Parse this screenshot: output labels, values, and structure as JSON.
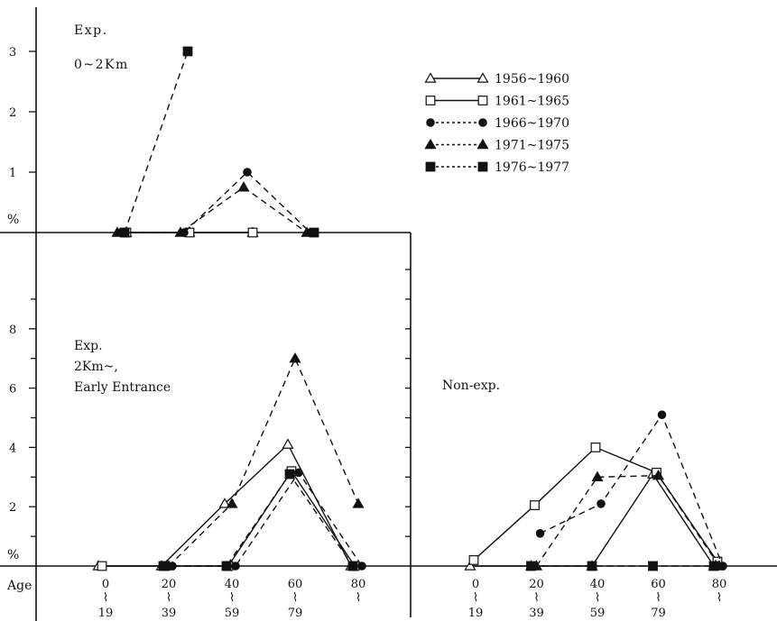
{
  "age_label": "Age",
  "legend": [
    {
      "label": "1956~1960",
      "marker": "triangle-open",
      "dash": "solid"
    },
    {
      "label": "1961~1965",
      "marker": "square-open",
      "dash": "solid"
    },
    {
      "label": "1966~1970",
      "marker": "circle-filled",
      "dash": "dotted"
    },
    {
      "label": "1971~1975",
      "marker": "triangle-filled",
      "dash": "dotted"
    },
    {
      "label": "1976~1977",
      "marker": "square-filled",
      "dash": "dotted"
    }
  ],
  "age_groups": [
    {
      "top": "0",
      "bottom": "19"
    },
    {
      "top": "20",
      "bottom": "39"
    },
    {
      "top": "40",
      "bottom": "59"
    },
    {
      "top": "60",
      "bottom": "79"
    },
    {
      "top": "80",
      "bottom": ""
    }
  ],
  "chart_data": [
    {
      "type": "line",
      "panel": "exp-0-2km",
      "title_lines": [
        "Exp.",
        "0~2Km"
      ],
      "ylabel": "%",
      "yticks": [
        "1",
        "2",
        "3"
      ],
      "ylim": [
        0,
        3
      ],
      "categories": [
        "0~19",
        "20~39",
        "40~59",
        "60~79",
        "80~"
      ],
      "series": [
        {
          "name": "1956~1960",
          "values": [
            null,
            0,
            0,
            0,
            null
          ]
        },
        {
          "name": "1961~1965",
          "values": [
            null,
            0,
            0,
            0,
            null
          ]
        },
        {
          "name": "1966~1970",
          "values": [
            null,
            0,
            0,
            1.0,
            0
          ]
        },
        {
          "name": "1971~1975",
          "values": [
            null,
            0,
            0,
            0.75,
            0
          ]
        },
        {
          "name": "1976~1977",
          "values": [
            null,
            0,
            3.0,
            null,
            0
          ]
        }
      ]
    },
    {
      "type": "line",
      "panel": "exp-2km-early",
      "title_lines": [
        "Exp.",
        "2Km~,",
        "Early Entrance"
      ],
      "ylabel": "%",
      "yticks": [
        "2",
        "4",
        "6",
        "8"
      ],
      "ylim": [
        0,
        10
      ],
      "categories": [
        "0~19",
        "20~39",
        "40~59",
        "60~79",
        "80~"
      ],
      "series": [
        {
          "name": "1956~1960",
          "values": [
            0,
            0,
            2.1,
            4.1,
            0
          ]
        },
        {
          "name": "1961~1965",
          "values": [
            0,
            0,
            0,
            3.2,
            0
          ]
        },
        {
          "name": "1966~1970",
          "values": [
            null,
            0,
            0,
            3.15,
            0
          ]
        },
        {
          "name": "1971~1975",
          "values": [
            null,
            0,
            2.1,
            7.0,
            2.1
          ]
        },
        {
          "name": "1976~1977",
          "values": [
            null,
            0,
            0,
            3.1,
            0
          ]
        }
      ]
    },
    {
      "type": "line",
      "panel": "non-exp",
      "title_lines": [
        "Non-exp."
      ],
      "ylabel": "",
      "yticks": [],
      "ylim": [
        0,
        10
      ],
      "categories": [
        "0~19",
        "20~39",
        "40~59",
        "60~79",
        "80~"
      ],
      "series": [
        {
          "name": "1956~1960",
          "values": [
            0,
            0,
            0,
            3.1,
            0
          ]
        },
        {
          "name": "1961~1965",
          "values": [
            0.2,
            2.05,
            4.0,
            3.15,
            0.15
          ]
        },
        {
          "name": "1966~1970",
          "values": [
            null,
            1.1,
            2.1,
            5.1,
            0
          ]
        },
        {
          "name": "1971~1975",
          "values": [
            null,
            0,
            3.0,
            3.05,
            0
          ]
        },
        {
          "name": "1976~1977",
          "values": [
            null,
            0,
            0,
            0,
            0
          ]
        }
      ]
    }
  ]
}
